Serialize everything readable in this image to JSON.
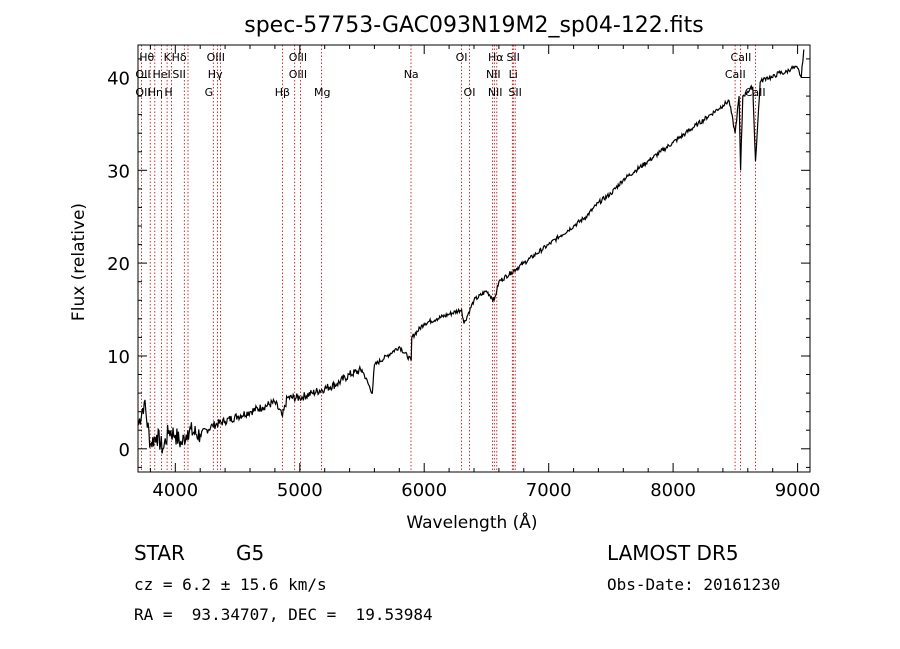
{
  "chart_data": {
    "type": "line",
    "title": "spec-57753-GAC093N19M2_sp04-122.fits",
    "xlabel": "Wavelength (Å)",
    "ylabel": "Flux (relative)",
    "xlim": [
      3700,
      9100
    ],
    "ylim": [
      -2.5,
      43.5
    ],
    "xticks": [
      4000,
      5000,
      6000,
      7000,
      8000,
      9000
    ],
    "yticks": [
      0,
      10,
      20,
      30,
      40
    ],
    "grid": false,
    "series": [
      {
        "x": [
          3700,
          3750,
          3800,
          3850,
          3900,
          3950,
          4000,
          4050,
          4100,
          4200,
          4300,
          4400,
          4500,
          4600,
          4700,
          4800,
          4861,
          4900,
          5000,
          5100,
          5200,
          5300,
          5400,
          5500,
          5583,
          5600,
          5700,
          5800,
          5895,
          5900,
          6000,
          6100,
          6200,
          6300,
          6320,
          6400,
          6500,
          6563,
          6600,
          6700,
          6800,
          6900,
          7000,
          7100,
          7200,
          7300,
          7400,
          7500,
          7600,
          7700,
          7800,
          7900,
          8000,
          8100,
          8200,
          8300,
          8400,
          8450,
          8498,
          8530,
          8542,
          8560,
          8600,
          8640,
          8662,
          8700,
          8750,
          8800,
          8850,
          8900,
          8950,
          9000,
          9030,
          9050
        ],
        "y": [
          2.5,
          5.0,
          0.5,
          1.5,
          0.0,
          2.0,
          1.5,
          0.5,
          2.0,
          1.5,
          2.5,
          3.0,
          3.5,
          4.0,
          4.5,
          5.0,
          3.5,
          5.5,
          5.5,
          6.0,
          6.5,
          7.0,
          8.0,
          8.5,
          6.0,
          9.0,
          10.0,
          11.0,
          9.5,
          12.0,
          13.5,
          14.0,
          14.5,
          15.0,
          13.5,
          16.0,
          17.0,
          16.0,
          18.0,
          19.0,
          20.0,
          21.0,
          22.0,
          23.0,
          24.0,
          25.0,
          26.5,
          27.5,
          29.0,
          30.0,
          31.0,
          32.0,
          33.0,
          34.0,
          35.0,
          36.0,
          37.0,
          37.5,
          34.0,
          38.0,
          30.0,
          38.0,
          38.5,
          39.0,
          31.0,
          39.5,
          40.0,
          40.0,
          40.5,
          40.5,
          41.0,
          41.0,
          40.0,
          43.0
        ]
      }
    ],
    "lines": [
      {
        "name": "Hθ",
        "wl": 3798
      },
      {
        "name": "OII",
        "wl": 3727
      },
      {
        "name": "Hη",
        "wl": 3835
      },
      {
        "name": "HeI",
        "wl": 3889
      },
      {
        "name": "K",
        "wl": 3934
      },
      {
        "name": "H",
        "wl": 3968
      },
      {
        "name": "SII",
        "wl": 4072
      },
      {
        "name": "Hδ",
        "wl": 4102
      },
      {
        "name": "Hγ",
        "wl": 4340
      },
      {
        "name": "G",
        "wl": 4305
      },
      {
        "name": "OIII",
        "wl": 4363
      },
      {
        "name": "Hβ",
        "wl": 4861
      },
      {
        "name": "OIII",
        "wl": 4959
      },
      {
        "name": "OIII",
        "wl": 5007
      },
      {
        "name": "Mg",
        "wl": 5175
      },
      {
        "name": "Na",
        "wl": 5894
      },
      {
        "name": "OI",
        "wl": 6300
      },
      {
        "name": "OI",
        "wl": 6364
      },
      {
        "name": "NII",
        "wl": 6548
      },
      {
        "name": "Hα",
        "wl": 6563
      },
      {
        "name": "NII",
        "wl": 6583
      },
      {
        "name": "Li",
        "wl": 6708
      },
      {
        "name": "SII",
        "wl": 6716
      },
      {
        "name": "SII",
        "wl": 6731
      },
      {
        "name": "CaII",
        "wl": 8498
      },
      {
        "name": "CaII",
        "wl": 8542
      },
      {
        "name": "CaII",
        "wl": 8662
      }
    ],
    "line_labels": [
      {
        "text": "Hθ",
        "wl": 3770,
        "row": 0
      },
      {
        "text": "K",
        "wl": 3935,
        "row": 0
      },
      {
        "text": "Hδ",
        "wl": 4030,
        "row": 0
      },
      {
        "text": "OIII",
        "wl": 4325,
        "row": 0
      },
      {
        "text": "OIII",
        "wl": 4985,
        "row": 0
      },
      {
        "text": "OI",
        "wl": 6300,
        "row": 0
      },
      {
        "text": "Hα",
        "wl": 6575,
        "row": 0
      },
      {
        "text": "SII",
        "wl": 6715,
        "row": 0
      },
      {
        "text": "CaII",
        "wl": 8545,
        "row": 0
      },
      {
        "text": "OII",
        "wl": 3740,
        "row": 1
      },
      {
        "text": "HeI",
        "wl": 3890,
        "row": 1
      },
      {
        "text": "SII",
        "wl": 4030,
        "row": 1
      },
      {
        "text": "Hγ",
        "wl": 4320,
        "row": 1
      },
      {
        "text": "OIII",
        "wl": 4985,
        "row": 1
      },
      {
        "text": "Na",
        "wl": 5895,
        "row": 1
      },
      {
        "text": "NII",
        "wl": 6555,
        "row": 1
      },
      {
        "text": "Li",
        "wl": 6715,
        "row": 1
      },
      {
        "text": "CaII",
        "wl": 8500,
        "row": 1
      },
      {
        "text": "OII",
        "wl": 3740,
        "row": 2
      },
      {
        "text": "Hη",
        "wl": 3840,
        "row": 2
      },
      {
        "text": "H",
        "wl": 3945,
        "row": 2
      },
      {
        "text": "G",
        "wl": 4270,
        "row": 2
      },
      {
        "text": "Hβ",
        "wl": 4860,
        "row": 2
      },
      {
        "text": "Mg",
        "wl": 5180,
        "row": 2
      },
      {
        "text": "OI",
        "wl": 6364,
        "row": 2
      },
      {
        "text": "NII",
        "wl": 6570,
        "row": 2
      },
      {
        "text": "SII",
        "wl": 6730,
        "row": 2
      },
      {
        "text": "CaII",
        "wl": 8660,
        "row": 2
      }
    ]
  },
  "info": {
    "object_class": "STAR",
    "subclass": "G5",
    "survey": "LAMOST DR5",
    "redshift": "cz = 6.2 ± 15.6 km/s",
    "obs_date": "Obs-Date: 20161230",
    "coords": "RA =  93.34707, DEC =  19.53984"
  }
}
